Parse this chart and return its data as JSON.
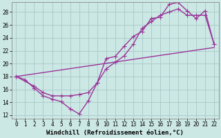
{
  "xlabel": "Windchill (Refroidissement éolien,°C)",
  "bg_color": "#cce8e4",
  "grid_color": "#aacccc",
  "line_color": "#993399",
  "xlim": [
    -0.5,
    22.5
  ],
  "ylim": [
    11.5,
    29.5
  ],
  "xticks": [
    0,
    1,
    2,
    3,
    4,
    5,
    6,
    7,
    8,
    9,
    10,
    11,
    12,
    13,
    14,
    15,
    16,
    17,
    18,
    19,
    20,
    21,
    22
  ],
  "yticks": [
    12,
    14,
    16,
    18,
    20,
    22,
    24,
    26,
    28
  ],
  "line1_x": [
    0,
    1,
    2,
    3,
    4,
    5,
    6,
    7,
    8,
    9,
    10,
    11,
    12,
    13,
    14,
    15,
    16,
    17,
    18,
    19,
    20,
    21,
    22
  ],
  "line1_y": [
    18,
    17.5,
    16.2,
    15.0,
    14.5,
    14.1,
    13.0,
    12.2,
    14.2,
    17.0,
    20.8,
    21.1,
    22.7,
    24.2,
    25.0,
    27.0,
    27.2,
    29.2,
    29.5,
    28.2,
    27.0,
    28.2,
    23.0
  ],
  "line2_x": [
    0,
    2,
    3,
    4,
    5,
    6,
    7,
    8,
    9,
    10,
    11,
    12,
    13,
    14,
    15,
    16,
    17,
    18,
    19,
    20,
    21,
    22
  ],
  "line2_y": [
    18,
    16.5,
    15.5,
    15.0,
    15.0,
    15.0,
    15.2,
    15.5,
    17.0,
    19.2,
    20.2,
    21.2,
    23.0,
    25.5,
    26.5,
    27.5,
    28.0,
    28.5,
    27.5,
    27.5,
    27.5,
    23.0
  ],
  "line3_x": [
    0,
    22
  ],
  "line3_y": [
    18.0,
    22.5
  ],
  "markersize": 4,
  "linewidth": 1.0
}
